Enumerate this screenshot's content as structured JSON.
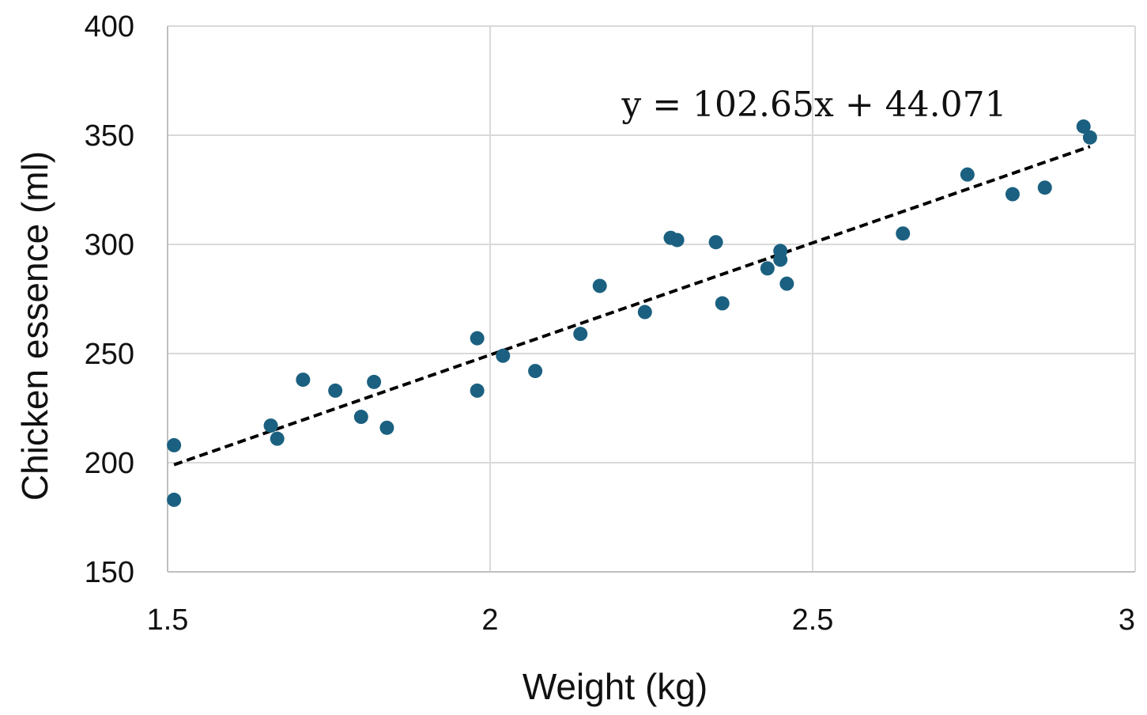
{
  "chart_data": {
    "type": "scatter",
    "xlabel": "Weight (kg)",
    "ylabel": "Chicken essence (ml)",
    "xlim": [
      1.5,
      3
    ],
    "ylim": [
      150,
      400
    ],
    "xticks": [
      1.5,
      2,
      2.5,
      3
    ],
    "yticks": [
      150,
      200,
      250,
      300,
      350,
      400
    ],
    "xtick_labels": [
      "1.5",
      "2",
      "2.5",
      "3"
    ],
    "ytick_labels": [
      "150",
      "200",
      "250",
      "300",
      "350",
      "400"
    ],
    "grid": true,
    "marker_color": "#1b6080",
    "trendline_color": "#000000",
    "points": [
      {
        "x": 1.51,
        "y": 208
      },
      {
        "x": 1.51,
        "y": 183
      },
      {
        "x": 1.66,
        "y": 217
      },
      {
        "x": 1.67,
        "y": 211
      },
      {
        "x": 1.71,
        "y": 238
      },
      {
        "x": 1.76,
        "y": 233
      },
      {
        "x": 1.8,
        "y": 221
      },
      {
        "x": 1.82,
        "y": 237
      },
      {
        "x": 1.84,
        "y": 216
      },
      {
        "x": 1.98,
        "y": 257
      },
      {
        "x": 1.98,
        "y": 233
      },
      {
        "x": 2.02,
        "y": 249
      },
      {
        "x": 2.07,
        "y": 242
      },
      {
        "x": 2.14,
        "y": 259
      },
      {
        "x": 2.17,
        "y": 281
      },
      {
        "x": 2.24,
        "y": 269
      },
      {
        "x": 2.28,
        "y": 303
      },
      {
        "x": 2.29,
        "y": 302
      },
      {
        "x": 2.35,
        "y": 301
      },
      {
        "x": 2.36,
        "y": 273
      },
      {
        "x": 2.43,
        "y": 289
      },
      {
        "x": 2.45,
        "y": 297
      },
      {
        "x": 2.45,
        "y": 293
      },
      {
        "x": 2.46,
        "y": 282
      },
      {
        "x": 2.64,
        "y": 305
      },
      {
        "x": 2.74,
        "y": 332
      },
      {
        "x": 2.81,
        "y": 323
      },
      {
        "x": 2.86,
        "y": 326
      },
      {
        "x": 2.92,
        "y": 354
      },
      {
        "x": 2.93,
        "y": 349
      }
    ],
    "trendline": {
      "slope": 102.65,
      "intercept": 44.071,
      "x_range": [
        1.51,
        2.93
      ]
    },
    "annotation": "y = 102.65x + 44.071"
  }
}
